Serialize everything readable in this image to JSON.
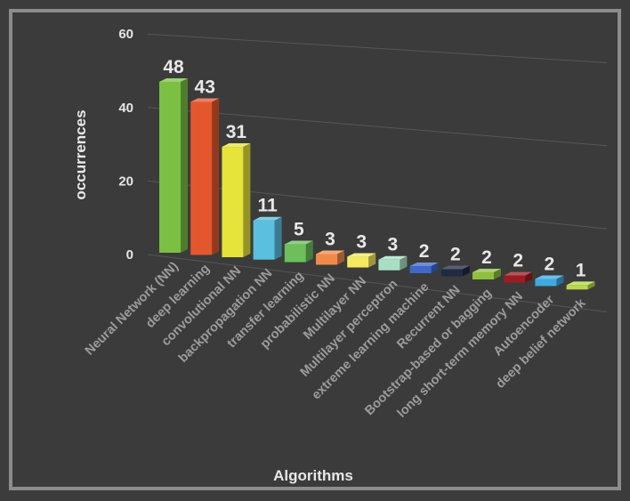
{
  "chart_data": {
    "type": "bar",
    "title": "",
    "xlabel": "Algorithms",
    "ylabel": "occurrences",
    "ylim": [
      0,
      60
    ],
    "yticks": [
      0,
      20,
      40,
      60
    ],
    "grid": true,
    "three_d": true,
    "categories": [
      "Neural Network (NN)",
      "deep learning",
      "convolutional NN",
      "backpropagation NN",
      "transfer learning",
      "probabilistic NN",
      "Multilayer NN",
      "Multilayer perceptron",
      "extreme learning machine",
      "Recurrent NN",
      "Bootstrap-based or bagging",
      "long short-term memory NN",
      "Autoencoder",
      "deep belief network"
    ],
    "values": [
      48,
      43,
      31,
      11,
      5,
      3,
      3,
      3,
      2,
      2,
      2,
      2,
      2,
      1
    ],
    "colors": [
      "#7bc043",
      "#e4572e",
      "#e6e33a",
      "#5bc0de",
      "#6cbf5b",
      "#f08a4b",
      "#f5e960",
      "#a8dfc4",
      "#3f68c8",
      "#1f2a44",
      "#8fbf3f",
      "#9b1c22",
      "#3fa9e0",
      "#b6d94c"
    ]
  }
}
